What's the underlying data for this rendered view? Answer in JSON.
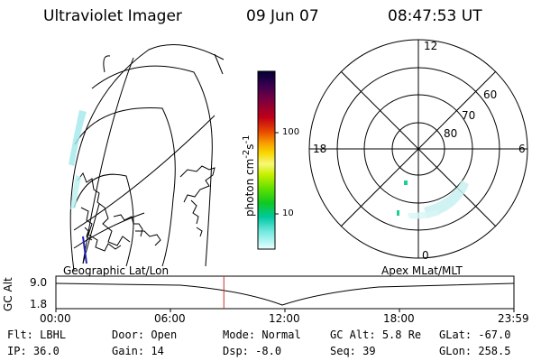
{
  "header": {
    "instrument": "Ultraviolet Imager",
    "date": "09 Jun 07",
    "time": "08:47:53 UT"
  },
  "colorbar": {
    "label": "photon cm-2s-1",
    "ticks": [
      "100",
      "10"
    ],
    "colors": [
      "#000033",
      "#2a0040",
      "#5a0050",
      "#8a0030",
      "#b0001a",
      "#d8200a",
      "#f06400",
      "#f8a000",
      "#f8d000",
      "#f8f070",
      "#c8f000",
      "#70e000",
      "#10c800",
      "#00c890",
      "#40e0d0",
      "#a0f0f0",
      "#e0ffff"
    ]
  },
  "polar": {
    "mlt_labels": {
      "top": "12",
      "left": "18",
      "right": "6",
      "bottom": "0"
    },
    "lat_labels": [
      "60",
      "70",
      "80"
    ]
  },
  "timeline": {
    "ylabel": "GC Alt",
    "y_ticks": [
      "9.0",
      "1.8"
    ],
    "left_title": "Geographic Lat/Lon",
    "right_title": "Apex MLat/MLT",
    "x_ticks": [
      "00:00",
      "06:00",
      "12:00",
      "18:00",
      "23:59"
    ],
    "current_marker_hours": 8.8
  },
  "status": {
    "row1": [
      {
        "key": "Flt:",
        "value": "LBHL"
      },
      {
        "key": "Door:",
        "value": "Open"
      },
      {
        "key": "Mode:",
        "value": "Normal"
      },
      {
        "key": "GC Alt:",
        "value": "5.8 Re"
      },
      {
        "key": "GLat:",
        "value": "-67.0"
      }
    ],
    "row2": [
      {
        "key": "IP:",
        "value": "36.0"
      },
      {
        "key": "Gain:",
        "value": "14"
      },
      {
        "key": "Dsp:",
        "value": "-8.0"
      },
      {
        "key": "Seq:",
        "value": "39"
      },
      {
        "key": "GLon:",
        "value": "258.5"
      }
    ]
  }
}
